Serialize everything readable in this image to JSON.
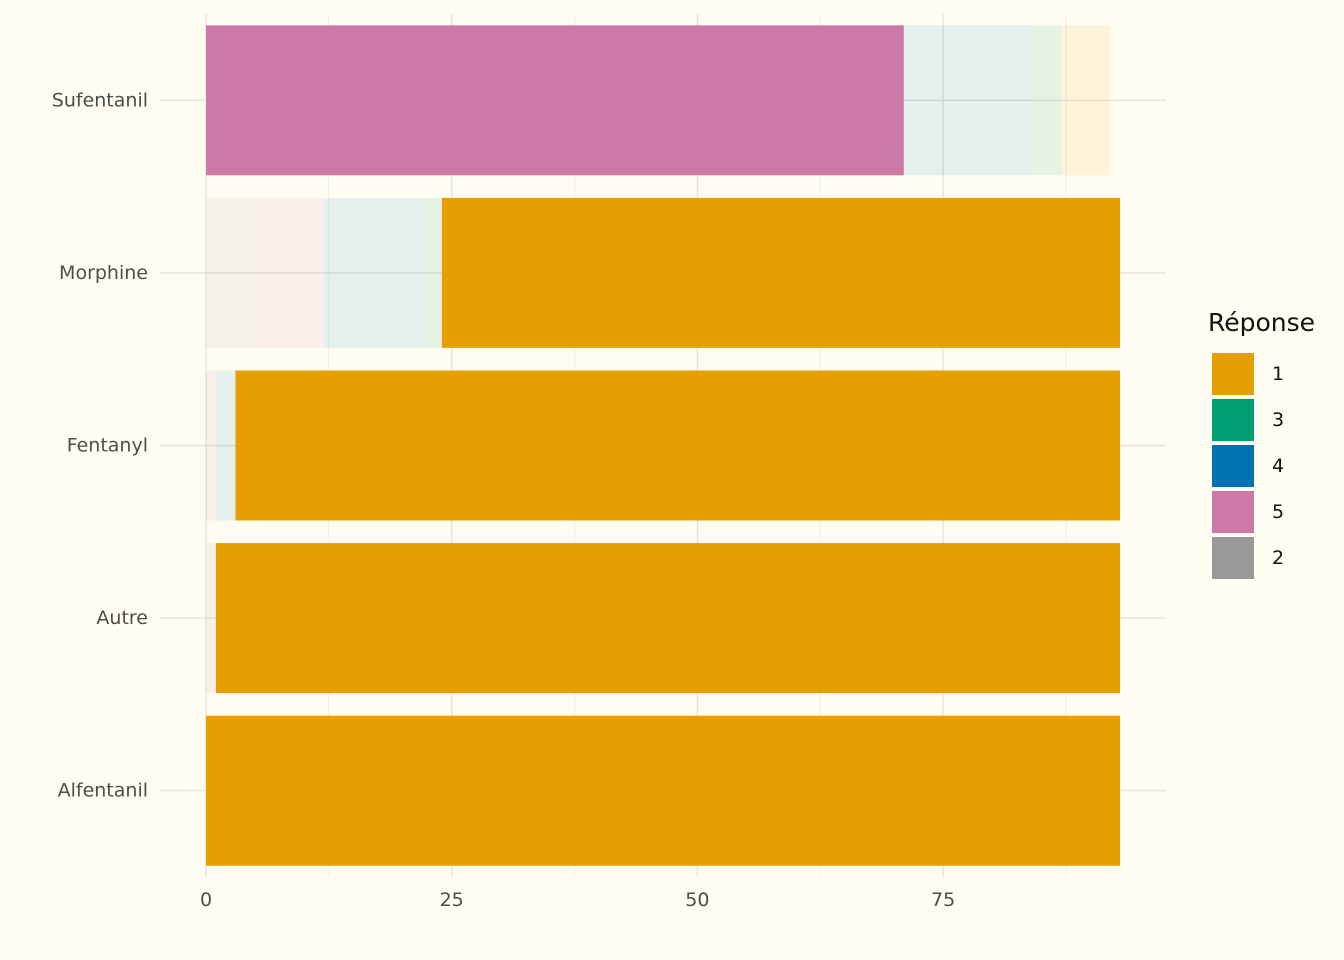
{
  "chart_data": {
    "type": "bar",
    "orientation": "horizontal",
    "stacked": true,
    "categories": [
      "Sufentanil",
      "Morphine",
      "Fentanyl",
      "Autre",
      "Alfentanil"
    ],
    "xlim": [
      0,
      93
    ],
    "xticks": [
      "0",
      "25",
      "50",
      "75"
    ],
    "xtick_values": [
      0,
      25,
      50,
      75
    ],
    "grid": true,
    "legend_placement": "right",
    "background": "#FFFDF2",
    "highlight": {
      "Sufentanil": "5",
      "Morphine": "1",
      "Fentanyl": "1",
      "Autre": "1",
      "Alfentanil": "1"
    },
    "series": [
      {
        "name": "2",
        "color": "#999999",
        "values": [
          0,
          5,
          0,
          1,
          0
        ]
      },
      {
        "name": "5",
        "color": "#CC79A7",
        "values": [
          71,
          7,
          1,
          0,
          0
        ]
      },
      {
        "name": "4",
        "color": "#0072B2",
        "values": [
          13,
          10,
          2,
          0,
          0
        ]
      },
      {
        "name": "3",
        "color": "#009E73",
        "values": [
          3,
          2,
          0,
          0,
          0
        ]
      },
      {
        "name": "1",
        "color": "#E69F00",
        "values": [
          5,
          69,
          90,
          92,
          93
        ]
      }
    ]
  },
  "legend": {
    "title": "Réponse",
    "items": [
      {
        "label": "1",
        "color": "#E69F00"
      },
      {
        "label": "3",
        "color": "#009E73"
      },
      {
        "label": "4",
        "color": "#0072B2"
      },
      {
        "label": "5",
        "color": "#CC79A7"
      },
      {
        "label": "2",
        "color": "#999999"
      }
    ]
  }
}
